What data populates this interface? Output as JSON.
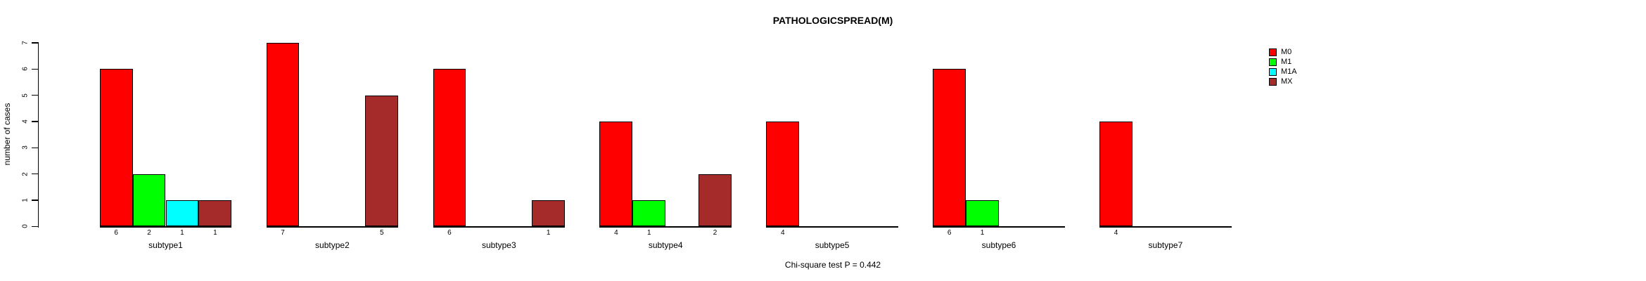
{
  "title": "PATHOLOGICSPREAD(M)",
  "annotation": "Chi-square test P = 0.442",
  "colors": {
    "background": "#FFFFFF",
    "axis": "#000000",
    "text": "#000000"
  },
  "chart_data": {
    "type": "bar",
    "title": "PATHOLOGICSPREAD(M)",
    "annotation": "Chi-square test P = 0.442",
    "xlabel": "",
    "ylabel": "number of cases",
    "ylim": [
      0,
      7
    ],
    "yticks": [
      0,
      1,
      2,
      3,
      4,
      5,
      6,
      7
    ],
    "grid": false,
    "legend_position": "top-right",
    "bar_value_labels": true,
    "categories": [
      "subtype1",
      "subtype2",
      "subtype3",
      "subtype4",
      "subtype5",
      "subtype6",
      "subtype7"
    ],
    "series": [
      {
        "name": "M0",
        "color": "#FF0000",
        "values": [
          6,
          7,
          6,
          4,
          4,
          6,
          4
        ]
      },
      {
        "name": "M1",
        "color": "#00FF00",
        "values": [
          2,
          0,
          0,
          1,
          0,
          1,
          0
        ]
      },
      {
        "name": "M1A",
        "color": "#00FFFF",
        "values": [
          1,
          0,
          0,
          0,
          0,
          0,
          0
        ]
      },
      {
        "name": "MX",
        "color": "#A52A2A",
        "values": [
          1,
          5,
          1,
          2,
          0,
          0,
          0
        ]
      }
    ]
  }
}
